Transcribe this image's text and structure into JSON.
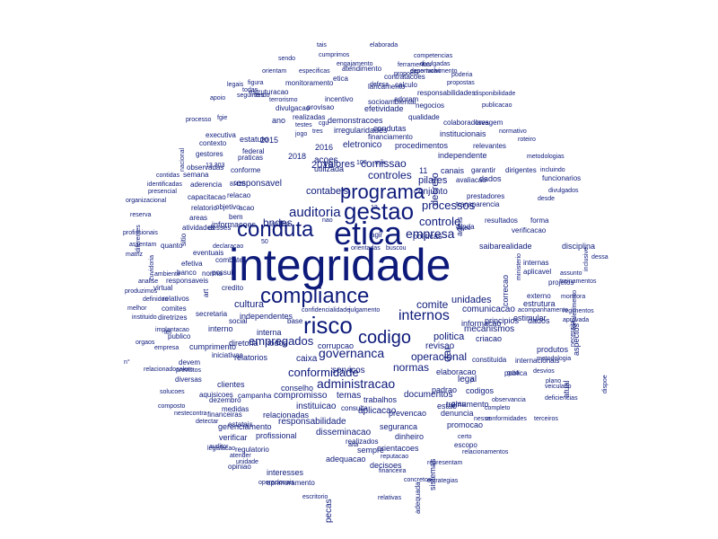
{
  "words": [
    "integridade",
    "etica",
    "gestao",
    "conduta",
    "compliance",
    "risco",
    "programa",
    "codigo",
    "internos",
    "auditoria",
    "empresa",
    "governanca",
    "controle",
    "processos",
    "administracao",
    "conformidade",
    "empregados",
    "comite",
    "controles",
    "comissao",
    "bndes",
    "normas",
    "operacional",
    "pilares",
    "conjunto",
    "comunicacao",
    "unidades",
    "mecanismos",
    "criacao",
    "revisao",
    "legal",
    "codigos",
    "treinamento",
    "documentos",
    "prevencao",
    "denuncia",
    "aplicacao",
    "instituicao",
    "relacionadas",
    "sistemas",
    "gerenciamento",
    "verificar",
    "profissional",
    "responsabilidade",
    "disseminacao",
    "dinheiro",
    "realizados",
    "orientacoes",
    "sempre",
    "interesses",
    "adequacao",
    "decisoes",
    "reputacao",
    "adequada",
    "cumprimento",
    "diretoria",
    "todos",
    "clientes",
    "conselho",
    "compromisso",
    "temas",
    "trabalhos",
    "consulta",
    "seguranca",
    "promocao",
    "escopo",
    "certo",
    "politica",
    "politicas",
    "principios",
    "dados",
    "produtos",
    "informacao",
    "elaboracao",
    "estrutura",
    "estimular",
    "internas",
    "aplicavel",
    "externo",
    "projetos",
    "verificacao",
    "saibarealidade",
    "disciplina",
    "resultados",
    "forma",
    "ainda",
    "valec",
    "avaliacao",
    "prestadores",
    "transparencia",
    "funcionarios",
    "dirigentes",
    "garantir",
    "canais",
    "independente",
    "procedimentos",
    "relevantes",
    "institucionais",
    "colaboradores",
    "lavagem",
    "eletronico",
    "irregularidades",
    "condutas",
    "financiamento",
    "demonstracoes",
    "efetividade",
    "qualidade",
    "negocios",
    "responsabilidades",
    "socioambiental",
    "contratacoes",
    "calculo",
    "lancamento",
    "etica",
    "atendimento",
    "incentivo",
    "estruturacao",
    "monitoramento",
    "provisao",
    "realizadas",
    "divulgacao",
    "estatuto",
    "federal",
    "executiva",
    "contexto",
    "gestores",
    "observadas",
    "aderencia",
    "semana",
    "conforme",
    "responsavel",
    "praticas",
    "relacao",
    "objetivo",
    "relatorio",
    "areas",
    "desses",
    "atividades",
    "quanto",
    "eventuais",
    "efetiva",
    "norma",
    "banco",
    "virtual",
    "responsaveis",
    "relativos",
    "comites",
    "secretaria",
    "diretrizes",
    "publico",
    "iniciativas",
    "devem",
    "diversas",
    "aquisicoes",
    "campanha",
    "medidas",
    "dezembro",
    "regulatorio",
    "aprimoramento",
    "opiniao",
    "estatais",
    "financeiras",
    "independentes",
    "cultura",
    "interna",
    "interno",
    "corrupcao",
    "servicos",
    "caixa",
    "base",
    "lei",
    "2015",
    "2016",
    "2018",
    "2019",
    "contabeis",
    "acoes",
    "valores",
    "informacoes",
    "capacitacao",
    "utilizada",
    "acao",
    "bem",
    "avalia",
    "combate",
    "possui",
    "credito",
    "social",
    "tais",
    "elaborada",
    "competencias",
    "cumprimos",
    "ferramentas",
    "engajamento",
    "divulgadas",
    "propoem",
    "desenvolvimento",
    "sendo",
    "especificas",
    "exportacao",
    "poderia",
    "orientam",
    "legais",
    "figura",
    "todas",
    "seguintes",
    "tendo",
    "terrorismo",
    "apoio",
    "defesa",
    "propostas",
    "disponibilidade",
    "publicacao",
    "processo",
    "fgie",
    "ano",
    "testes",
    "cgu",
    "jogo",
    "tres",
    "normativo",
    "roteiro",
    "metodologias",
    "incluindo",
    "nacional",
    "contidas",
    "identificadas",
    "presencial",
    "8.420",
    "13.303",
    "organizacional",
    "reserva",
    "divulgados",
    "desde",
    "diferentes",
    "inclusive",
    "cuvidoria",
    "profissionais",
    "assentam",
    "matriz",
    "declaracao",
    "orientadas",
    "buscou",
    "dessa",
    "assunto",
    "treinamentos",
    "monitora",
    "ambiente",
    "analise",
    "produzimos",
    "definidos",
    "melhor",
    "instituido",
    "orgaos",
    "empresa",
    "regimentos",
    "aprovada",
    "implantacao",
    "previstos",
    "solucoes",
    "composto",
    "nestecontra",
    "detectar",
    "auditor",
    "legislacao",
    "atender",
    "unidade",
    "operacionais",
    "confidencialidade",
    "escritorio",
    "julgamento",
    "financeira",
    "concretos",
    "estrategias",
    "relativas",
    "representam",
    "relacionamentos",
    "conformidades",
    "completo",
    "observancia",
    "terceiros",
    "deficiencias",
    "plano",
    "veiculado",
    "desvios",
    "dispoe",
    "fortalecimento",
    "necessita",
    "aspectos",
    "atual",
    "publica",
    "internacionais",
    "metodologia",
    "constituida",
    "guia",
    "grau",
    "padrao",
    "estao",
    "agir",
    "50",
    "12",
    "11",
    "100",
    "mix",
    "nao",
    "nesse",
    "p",
    "dar",
    "alta",
    "pecas",
    "sitio",
    "art",
    "correcao",
    "ministerio",
    "acompanhamento",
    "relatorios",
    "decreto",
    "adoram",
    "dados",
    "ageis",
    "relacionadosalem",
    "n°",
    "canais",
    "ego",
    "on-line",
    "etico",
    "fomentar",
    "maquiavel",
    "solucoes"
  ],
  "colors": {
    "text": "#0d1a7a",
    "background": "#ffffff"
  }
}
